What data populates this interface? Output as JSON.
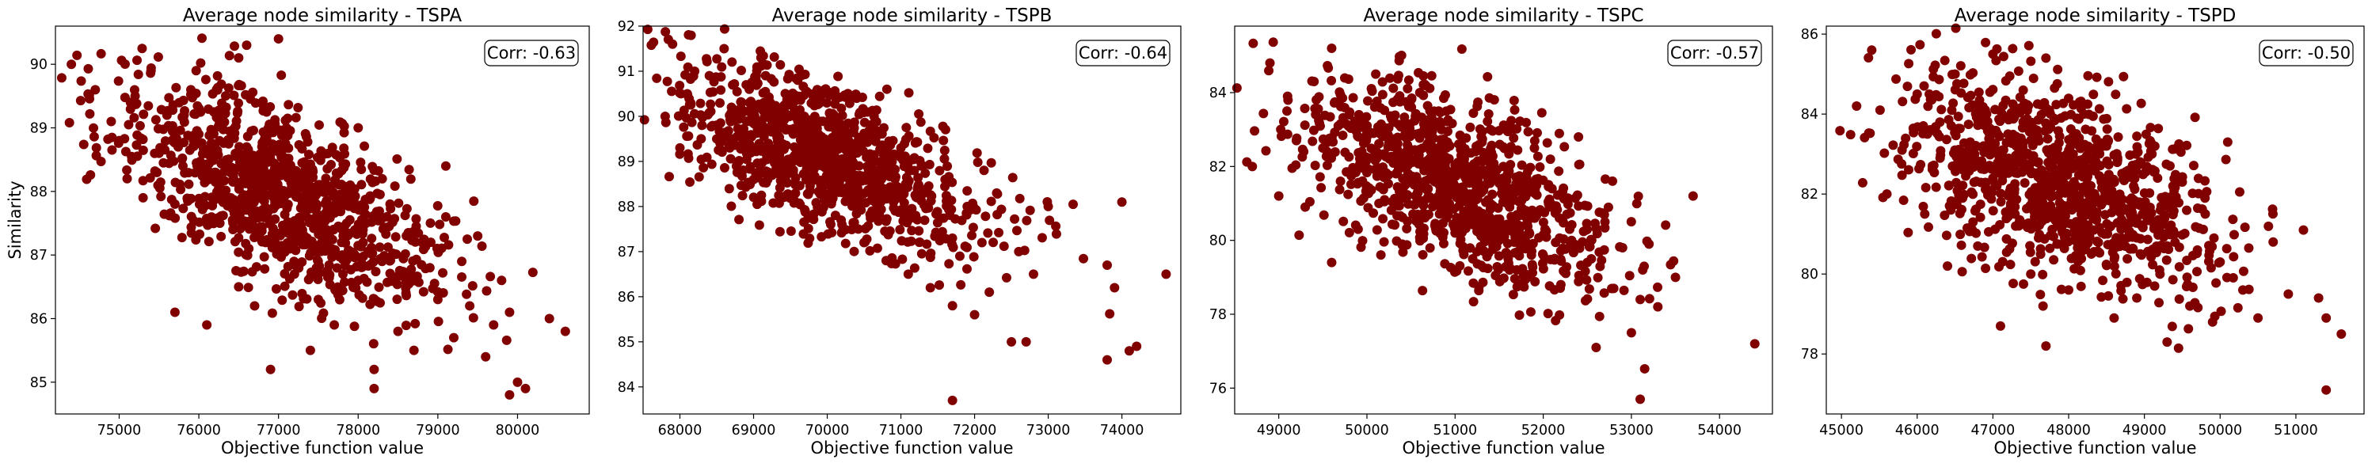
{
  "chart_data": [
    {
      "type": "scatter",
      "title": "Average node similarity - TSPA",
      "xlabel": "Objective function value",
      "ylabel": "Similarity",
      "annotation": "Corr: -0.63",
      "xlim": [
        74200,
        80900
      ],
      "ylim": [
        84.5,
        90.6
      ],
      "xticks": [
        75000,
        76000,
        77000,
        78000,
        79000,
        80000
      ],
      "yticks": [
        85,
        86,
        87,
        88,
        89,
        90
      ],
      "marker_color": "#800000",
      "trend": {
        "mean_x": 77000,
        "sd_x": 1000,
        "mean_y": 88.0,
        "sd_y": 0.85,
        "corr": -0.63
      },
      "x": [
        74400,
        74700,
        74900,
        75000,
        75200,
        75100,
        75400,
        75500,
        75600,
        75300,
        75800,
        75900,
        75700,
        76000,
        76100,
        76200,
        76300,
        76500,
        76400,
        76600,
        76700,
        76800,
        76900,
        77000,
        77100,
        77200,
        77300,
        77400,
        77500,
        77600,
        77800,
        77700,
        77900,
        78000,
        78100,
        78200,
        78300,
        78400,
        78500,
        78600,
        78800,
        78700,
        78900,
        79000,
        79100,
        79200,
        79300,
        79400,
        79500,
        79600,
        79800,
        79700,
        79900,
        80000,
        80100,
        80400,
        80600,
        77000,
        76600,
        76100,
        77400,
        76900,
        75700,
        78200,
        79100,
        78000,
        76500,
        79900
      ],
      "y": [
        90.0,
        89.6,
        89.1,
        88.8,
        89.5,
        88.2,
        89.9,
        88.6,
        89.2,
        87.9,
        88.4,
        89.6,
        87.8,
        88.9,
        87.5,
        88.3,
        89.1,
        86.5,
        87.9,
        88.7,
        86.2,
        87.6,
        88.5,
        87.1,
        89.0,
        86.7,
        87.8,
        88.2,
        86.3,
        87.4,
        87.0,
        85.9,
        88.1,
        86.6,
        87.5,
        85.2,
        86.9,
        87.8,
        85.8,
        86.4,
        87.2,
        85.5,
        86.8,
        86.3,
        87.6,
        85.7,
        86.9,
        86.2,
        87.3,
        85.4,
        86.6,
        85.9,
        86.1,
        85.0,
        84.9,
        86.0,
        85.8,
        90.4,
        90.3,
        85.9,
        85.5,
        85.2,
        86.1,
        84.9,
        88.4,
        89.0,
        90.1,
        84.8
      ]
    },
    {
      "type": "scatter",
      "title": "Average node similarity - TSPB",
      "xlabel": "Objective function value",
      "ylabel": "",
      "annotation": "Corr: -0.64",
      "xlim": [
        67500,
        74800
      ],
      "ylim": [
        83.4,
        92.0
      ],
      "xticks": [
        68000,
        69000,
        70000,
        71000,
        72000,
        73000,
        74000
      ],
      "yticks": [
        84,
        85,
        86,
        87,
        88,
        89,
        90,
        91,
        92
      ],
      "marker_color": "#800000",
      "trend": {
        "mean_x": 70000,
        "sd_x": 1050,
        "mean_y": 89.1,
        "sd_y": 1.05,
        "corr": -0.64
      },
      "x": [
        67800,
        67900,
        68000,
        68100,
        68200,
        68300,
        68400,
        68500,
        68600,
        68700,
        68800,
        68900,
        69000,
        69100,
        69200,
        69300,
        69400,
        69500,
        69600,
        69700,
        69800,
        69900,
        70000,
        70100,
        70200,
        70300,
        70400,
        70500,
        70600,
        70700,
        70800,
        70900,
        71000,
        71100,
        71200,
        71300,
        71400,
        71500,
        71600,
        71700,
        71800,
        71900,
        72000,
        72100,
        72200,
        72300,
        72500,
        72600,
        72800,
        73000,
        73800,
        73900,
        74000,
        74100,
        74200,
        74600,
        71700,
        72700,
        73800
      ],
      "y": [
        90.0,
        91.6,
        89.3,
        90.5,
        91.0,
        89.8,
        90.9,
        89.5,
        91.5,
        90.2,
        89.0,
        90.7,
        88.6,
        91.3,
        89.4,
        90.1,
        88.2,
        89.7,
        90.8,
        87.9,
        89.2,
        90.3,
        88.5,
        89.9,
        87.6,
        88.9,
        90.4,
        87.2,
        88.7,
        89.6,
        86.8,
        88.1,
        89.3,
        86.5,
        87.8,
        88.9,
        86.2,
        87.4,
        88.6,
        85.8,
        86.9,
        88.0,
        85.6,
        87.2,
        86.1,
        88.3,
        85.0,
        87.0,
        86.5,
        88.0,
        84.6,
        86.2,
        88.1,
        84.8,
        84.9,
        86.5,
        83.7,
        85.0,
        86.7
      ]
    },
    {
      "type": "scatter",
      "title": "Average node similarity - TSPC",
      "xlabel": "Objective function value",
      "ylabel": "",
      "annotation": "Corr: -0.57",
      "xlim": [
        48500,
        54600
      ],
      "ylim": [
        75.3,
        85.8
      ],
      "xticks": [
        49000,
        50000,
        51000,
        52000,
        53000,
        54000
      ],
      "yticks": [
        76,
        78,
        80,
        82,
        84
      ],
      "marker_color": "#800000",
      "trend": {
        "mean_x": 51000,
        "sd_x": 850,
        "mean_y": 81.5,
        "sd_y": 1.4,
        "corr": -0.57
      },
      "x": [
        48700,
        48900,
        49000,
        49100,
        49200,
        49300,
        49400,
        49500,
        49600,
        49700,
        49800,
        49900,
        50000,
        50100,
        50200,
        50300,
        50400,
        50500,
        50600,
        50700,
        50800,
        50900,
        51000,
        51100,
        51200,
        51300,
        51400,
        51500,
        51600,
        51700,
        51800,
        51900,
        52000,
        52100,
        52200,
        52300,
        52400,
        52500,
        52600,
        52700,
        52800,
        52900,
        53000,
        53100,
        53200,
        53300,
        53500,
        53700,
        54400,
        53100,
        49600
      ],
      "y": [
        82.0,
        84.8,
        81.2,
        83.9,
        82.7,
        80.9,
        84.3,
        82.5,
        85.2,
        81.6,
        83.4,
        80.3,
        82.9,
        84.5,
        81.1,
        83.2,
        79.9,
        82.2,
        84.0,
        80.7,
        81.9,
        83.5,
        80.2,
        82.4,
        79.5,
        81.3,
        83.0,
        80.0,
        81.8,
        79.2,
        80.8,
        82.5,
        79.6,
        81.4,
        78.8,
        80.3,
        82.8,
        79.4,
        77.1,
        80.5,
        78.7,
        79.8,
        77.5,
        78.4,
        79.9,
        78.2,
        79.0,
        81.2,
        77.2,
        75.7,
        79.4
      ]
    },
    {
      "type": "scatter",
      "title": "Average node similarity - TSPD",
      "xlabel": "Objective function value",
      "ylabel": "",
      "annotation": "Corr: -0.50",
      "xlim": [
        44800,
        51900
      ],
      "ylim": [
        76.5,
        86.2
      ],
      "xticks": [
        45000,
        46000,
        47000,
        48000,
        49000,
        50000,
        51000
      ],
      "yticks": [
        78,
        80,
        82,
        84,
        86
      ],
      "marker_color": "#800000",
      "trend": {
        "mean_x": 47900,
        "sd_x": 1000,
        "mean_y": 82.3,
        "sd_y": 1.35,
        "corr": -0.5
      },
      "x": [
        45200,
        45400,
        45600,
        45800,
        46000,
        46100,
        46200,
        46300,
        46400,
        46500,
        46600,
        46700,
        46800,
        46900,
        47000,
        47100,
        47200,
        47300,
        47400,
        47500,
        47600,
        47700,
        47800,
        47900,
        48000,
        48100,
        48200,
        48300,
        48400,
        48500,
        48600,
        48700,
        48800,
        48900,
        49000,
        49100,
        49200,
        49300,
        49400,
        49500,
        49600,
        49700,
        49800,
        49900,
        50000,
        50100,
        50300,
        50500,
        50700,
        50900,
        51100,
        51300,
        51400,
        51600,
        51400,
        47000,
        47700
      ],
      "y": [
        84.2,
        85.6,
        82.0,
        83.1,
        84.5,
        81.5,
        82.7,
        83.8,
        80.2,
        85.0,
        81.9,
        83.3,
        80.7,
        84.1,
        82.4,
        78.7,
        83.5,
        81.2,
        84.6,
        80.0,
        82.8,
        85.4,
        81.4,
        83.9,
        79.6,
        82.2,
        84.0,
        80.5,
        81.8,
        83.2,
        78.9,
        80.9,
        82.6,
        79.4,
        81.5,
        83.0,
        80.1,
        78.3,
        81.0,
        82.3,
        79.2,
        80.6,
        81.9,
        78.8,
        80.3,
        83.3,
        79.6,
        78.9,
        80.8,
        79.5,
        81.1,
        79.4,
        77.1,
        78.5,
        78.9,
        85.5,
        78.2
      ]
    }
  ]
}
